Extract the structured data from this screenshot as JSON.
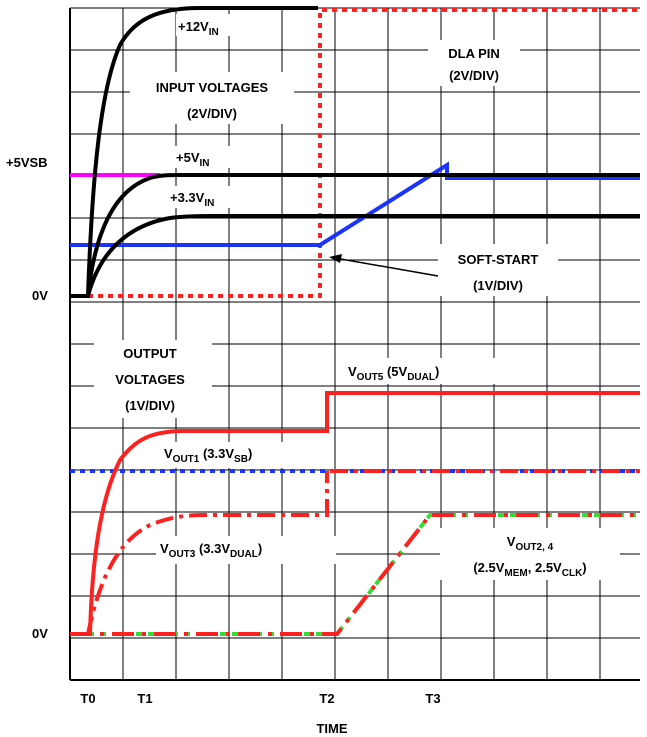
{
  "diagram": {
    "type": "timing-diagram",
    "colors": {
      "grid": "#000000",
      "input_rail": "#000000",
      "standby": "#ff00ff",
      "soft_start": "#1a33ff",
      "dla_pin": "#ff2020",
      "output_red": "#ff2020",
      "vout1_blue": "#1a33ff",
      "vout24_green": "#33dd33"
    },
    "top_section": {
      "group_label_line1": "INPUT VOLTAGES",
      "group_label_line2": "(2V/DIV)",
      "zero_label": "0V",
      "standby_label": "+5VSB",
      "rail_12": {
        "pre": "+12V",
        "sub": "IN"
      },
      "rail_5": {
        "pre": "+5V",
        "sub": "IN"
      },
      "rail_33": {
        "pre": "+3.3V",
        "sub": "IN"
      },
      "dla_line1": "DLA PIN",
      "dla_line2": "(2V/DIV)",
      "softstart_line1": "SOFT-START",
      "softstart_line2": "(1V/DIV)"
    },
    "bottom_section": {
      "group_label_line1": "OUTPUT",
      "group_label_line2": "VOLTAGES",
      "group_label_line3": "(1V/DIV)",
      "zero_label": "0V",
      "vout5": {
        "v": "V",
        "sub": "OUT5",
        "mid": " (5V",
        "sub2": "DUAL",
        "end": ")"
      },
      "vout1": {
        "v": "V",
        "sub": "OUT1",
        "mid": " (3.3V",
        "sub2": "SB",
        "end": ")"
      },
      "vout3": {
        "v": "V",
        "sub": "OUT3",
        "mid": " (3.3V",
        "sub2": "DUAL",
        "end": ")"
      },
      "vout24_line1": {
        "v": "V",
        "sub": "OUT2, 4"
      },
      "vout24_line2": {
        "pre": "(2.5V",
        "sub": "MEM",
        "mid": ", 2.5V",
        "sub2": "CLK",
        "end": ")"
      }
    },
    "time_axis": {
      "label": "TIME",
      "ticks": [
        "T0",
        "T1",
        "T2",
        "T3"
      ]
    }
  }
}
